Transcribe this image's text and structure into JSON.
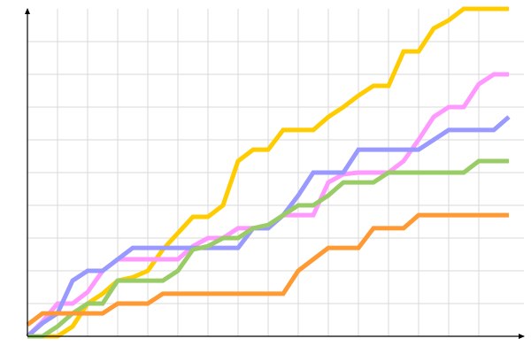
{
  "chart_data": {
    "type": "line",
    "title": "",
    "xlabel": "",
    "ylabel": "",
    "xlim": [
      0,
      16.5
    ],
    "ylim": [
      0,
      10
    ],
    "grid": true,
    "x": [
      0,
      0.5,
      1,
      1.5,
      2,
      2.5,
      3,
      3.5,
      4,
      4.5,
      5,
      5.5,
      6,
      6.5,
      7,
      7.5,
      8,
      8.5,
      9,
      9.5,
      10,
      10.5,
      11,
      11.5,
      12,
      12.5,
      13,
      13.5,
      14,
      14.5,
      15,
      15.5,
      16
    ],
    "series": [
      {
        "color": "#ffcc00",
        "values": [
          0,
          0,
          0,
          0.3,
          1.0,
          1.3,
          1.7,
          1.8,
          2.0,
          2.65,
          3.15,
          3.65,
          3.65,
          4.0,
          5.35,
          5.7,
          5.7,
          6.3,
          6.3,
          6.3,
          6.7,
          7.0,
          7.35,
          7.65,
          7.65,
          8.7,
          8.7,
          9.4,
          9.65,
          10,
          10,
          10,
          10
        ]
      },
      {
        "color": "#ff99ff",
        "values": [
          0,
          0.45,
          1.0,
          1.0,
          1.35,
          2.0,
          2.35,
          2.35,
          2.35,
          2.35,
          2.35,
          2.75,
          3.0,
          3.0,
          3.3,
          3.3,
          3.3,
          3.7,
          3.7,
          3.7,
          4.7,
          4.95,
          5.0,
          5.0,
          5.0,
          5.35,
          6.0,
          6.7,
          7.0,
          7.0,
          7.7,
          8.0,
          8.0
        ]
      },
      {
        "color": "#9999ff",
        "values": [
          0,
          0.4,
          0.7,
          1.7,
          2.0,
          2.0,
          2.35,
          2.7,
          2.7,
          2.7,
          2.7,
          2.7,
          2.7,
          2.7,
          2.7,
          3.3,
          3.3,
          3.7,
          4.3,
          5.0,
          5.0,
          5.0,
          5.7,
          5.7,
          5.7,
          5.7,
          5.7,
          6.0,
          6.3,
          6.3,
          6.3,
          6.3,
          6.7
        ]
      },
      {
        "color": "#99cc66",
        "values": [
          0,
          0,
          0.3,
          0.7,
          1.0,
          1.0,
          1.7,
          1.7,
          1.7,
          1.7,
          2.0,
          2.65,
          2.75,
          3.0,
          3.0,
          3.3,
          3.4,
          3.7,
          4.0,
          4.0,
          4.3,
          4.7,
          4.7,
          4.7,
          5.0,
          5.0,
          5.0,
          5.0,
          5.0,
          5.0,
          5.35,
          5.35,
          5.35
        ]
      },
      {
        "color": "#ff9933",
        "values": [
          0.35,
          0.7,
          0.7,
          0.7,
          0.7,
          0.7,
          1.0,
          1.0,
          1.0,
          1.3,
          1.3,
          1.3,
          1.3,
          1.3,
          1.3,
          1.3,
          1.3,
          1.3,
          2.0,
          2.35,
          2.7,
          2.7,
          2.7,
          3.3,
          3.3,
          3.3,
          3.7,
          3.7,
          3.7,
          3.7,
          3.7,
          3.7,
          3.7
        ]
      }
    ],
    "colors": {
      "grid": "#d9d9d9",
      "axis": "#000000"
    }
  }
}
